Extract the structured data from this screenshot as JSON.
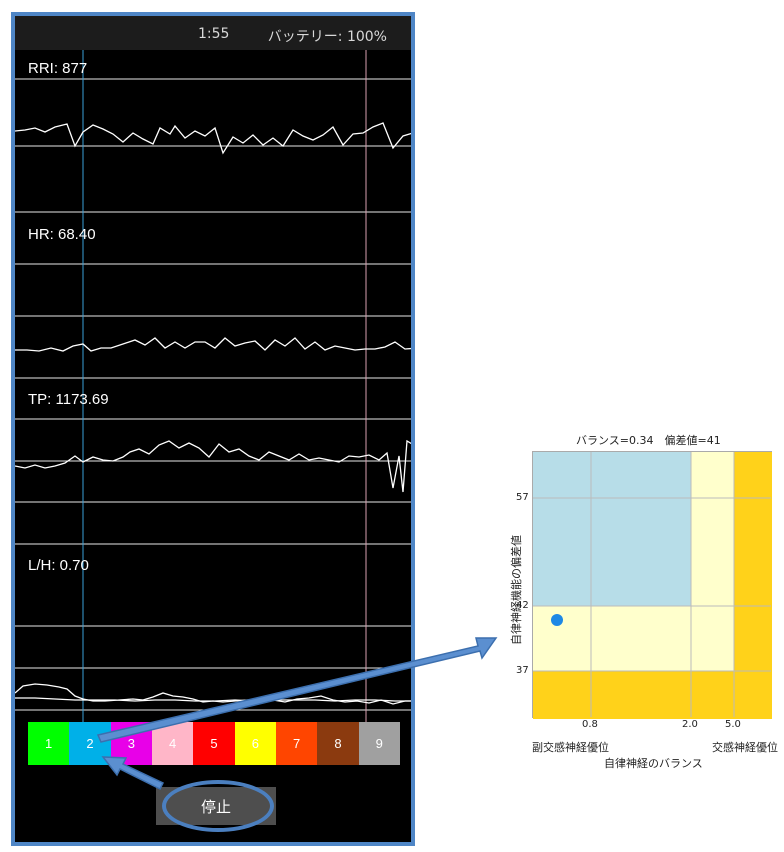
{
  "status_bar": {
    "time": "1:55",
    "battery": "バッテリー: 100%"
  },
  "panels": [
    {
      "label": "RRI: 877"
    },
    {
      "label": "HR: 68.40"
    },
    {
      "label": "TP: 1173.69"
    },
    {
      "label": "L/H: 0.70"
    }
  ],
  "color_buttons": [
    {
      "label": "1",
      "color": "#00ff00"
    },
    {
      "label": "2",
      "color": "#00b0e8"
    },
    {
      "label": "3",
      "color": "#e800e8"
    },
    {
      "label": "4",
      "color": "#ffb6c8"
    },
    {
      "label": "5",
      "color": "#ff0000"
    },
    {
      "label": "6",
      "color": "#ffff00"
    },
    {
      "label": "7",
      "color": "#ff4500"
    },
    {
      "label": "8",
      "color": "#8b3a0f"
    },
    {
      "label": "9",
      "color": "#a0a0a0"
    }
  ],
  "stop_button": {
    "label": "停止"
  },
  "chart_data": {
    "type": "scatter",
    "title": "バランス=0.34　偏差値=41",
    "xlabel": "自律神経のバランス",
    "ylabel": "自律神経機能の偏差値",
    "x_scale": "log",
    "x_ticks": [
      "0.8",
      "2.0",
      "5.0"
    ],
    "y_ticks": [
      "57",
      "42",
      "37"
    ],
    "x_left_label": "副交感神経優位",
    "x_right_label": "交感神経優位",
    "points": [
      {
        "x": 0.34,
        "y": 41
      }
    ],
    "zone_colors": {
      "blue": "#b7dde8",
      "pale_yellow": "#ffffcc",
      "gold": "#ffd21a"
    },
    "point_color": "#1e88e5"
  }
}
